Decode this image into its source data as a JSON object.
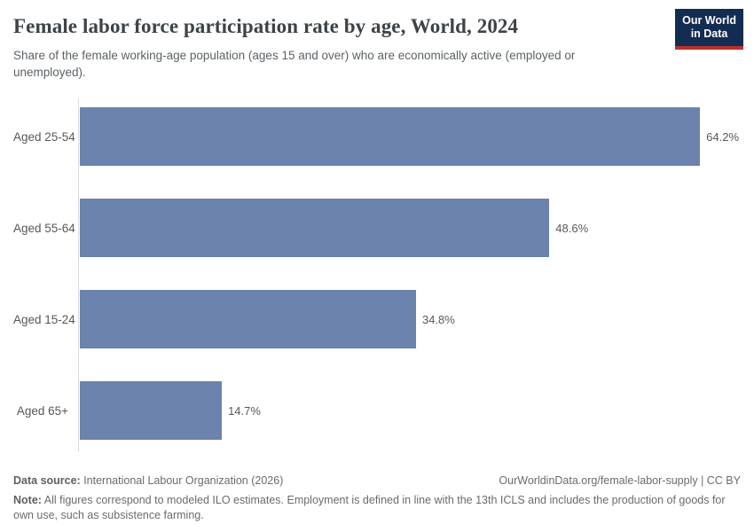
{
  "header": {
    "title": "Female labor force participation rate by age, World, 2024",
    "subtitle": "Share of the female working-age population (ages 15 and over) who are economically active (employed or unemployed).",
    "logo": {
      "line1": "Our World",
      "line2": "in Data"
    }
  },
  "chart_data": {
    "type": "bar",
    "orientation": "horizontal",
    "title": "Female labor force participation rate by age, World, 2024",
    "categories": [
      "Aged 25-54",
      "Aged 55-64",
      "Aged 15-24",
      "Aged 65+"
    ],
    "values": [
      64.2,
      48.6,
      34.8,
      14.7
    ],
    "value_labels": [
      "64.2%",
      "48.6%",
      "34.8%",
      "14.7%"
    ],
    "unit": "%",
    "xlim": [
      0,
      68.5
    ],
    "grid": false,
    "legend": "none",
    "bar_color": "#6b83ad"
  },
  "footer": {
    "source_label": "Data source:",
    "source_text": " International Labour Organization (2026)",
    "attribution": "OurWorldinData.org/female-labor-supply | CC BY",
    "note_label": "Note:",
    "note_text": " All figures correspond to modeled ILO estimates. Employment is defined in line with the 13th ICLS and includes the production of goods for own use, such as subsistence farming."
  },
  "colors": {
    "bar": "#6b83ad",
    "logo_bg": "#132c51",
    "logo_stripe": "#bc3028",
    "axis_line": "#dbdbdb"
  }
}
